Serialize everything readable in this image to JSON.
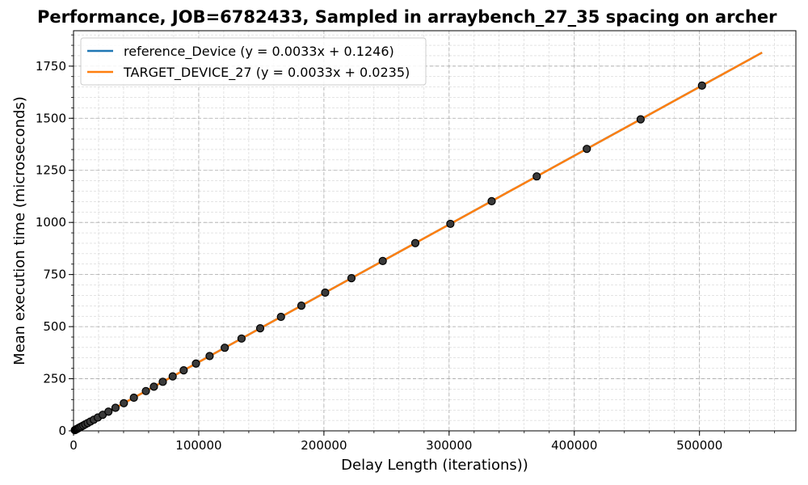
{
  "chart_data": {
    "type": "scatter",
    "title": "Performance, JOB=6782433, Sampled in arraybench_27_35 spacing on archer",
    "xlabel": "Delay Length (iterations))",
    "ylabel": "Mean execution time (microseconds)",
    "xlim": [
      0,
      577000
    ],
    "ylim": [
      0,
      1920
    ],
    "x_ticks": [
      0,
      100000,
      200000,
      300000,
      400000,
      500000
    ],
    "x_tick_labels": [
      "0",
      "100000",
      "200000",
      "300000",
      "400000",
      "500000"
    ],
    "y_ticks": [
      0,
      250,
      500,
      750,
      1000,
      1250,
      1500,
      1750
    ],
    "y_tick_labels": [
      "0",
      "250",
      "500",
      "750",
      "1000",
      "1250",
      "1500",
      "1750"
    ],
    "grid": true,
    "legend_position": "upper-left",
    "series": [
      {
        "name": "reference_Device (y = 0.0033x + 0.1246)",
        "kind": "fit-line",
        "color": "#1f77b4",
        "slope": 0.0033,
        "intercept": 0.1246,
        "x_range": [
          0,
          550000
        ]
      },
      {
        "name": "TARGET_DEVICE_27 (y = 0.0033x + 0.0235)",
        "kind": "fit-line",
        "color": "#ff7f0e",
        "slope": 0.0033,
        "intercept": 0.0235,
        "x_range": [
          0,
          550000
        ]
      }
    ],
    "points": {
      "marker_fill": "#3a3a3a",
      "marker_edge": "#000000",
      "x": [
        1000,
        1500,
        2000,
        2500,
        3000,
        3700,
        4500,
        5400,
        6500,
        7800,
        9400,
        11300,
        13500,
        16200,
        19400,
        23300,
        27900,
        33500,
        40200,
        48200,
        57800,
        64200,
        71300,
        79200,
        88000,
        97800,
        108700,
        120800,
        134200,
        149100,
        165700,
        182000,
        201000,
        222000,
        247000,
        273000,
        301000,
        334000,
        370000,
        410000,
        453000,
        502000
      ],
      "y": [
        3.3,
        5.0,
        6.6,
        8.3,
        9.9,
        12.2,
        14.9,
        17.8,
        21.5,
        25.8,
        31.0,
        37.3,
        44.6,
        53.5,
        64.0,
        76.9,
        92.1,
        110.6,
        132.7,
        159.1,
        190.8,
        211.9,
        235.3,
        261.4,
        290.4,
        322.8,
        358.7,
        398.7,
        442.9,
        492.0,
        546.8,
        600.6,
        663.3,
        732.6,
        815.1,
        900.9,
        993.3,
        1102.2,
        1221.0,
        1353.0,
        1494.9,
        1656.6
      ]
    }
  }
}
